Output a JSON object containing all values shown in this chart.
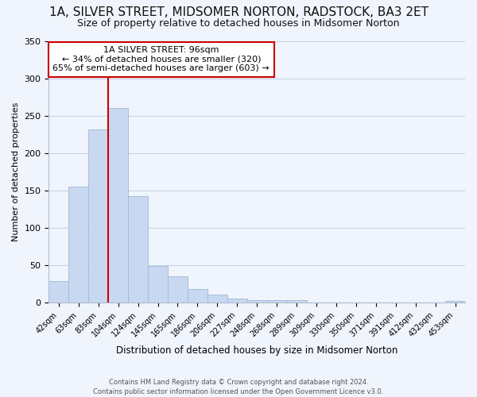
{
  "title_line1": "1A, SILVER STREET, MIDSOMER NORTON, RADSTOCK, BA3 2ET",
  "title_line2": "Size of property relative to detached houses in Midsomer Norton",
  "xlabel": "Distribution of detached houses by size in Midsomer Norton",
  "ylabel": "Number of detached properties",
  "bin_labels": [
    "42sqm",
    "63sqm",
    "83sqm",
    "104sqm",
    "124sqm",
    "145sqm",
    "165sqm",
    "186sqm",
    "206sqm",
    "227sqm",
    "248sqm",
    "268sqm",
    "289sqm",
    "309sqm",
    "330sqm",
    "350sqm",
    "371sqm",
    "391sqm",
    "412sqm",
    "432sqm",
    "453sqm"
  ],
  "bar_heights": [
    29,
    155,
    232,
    260,
    143,
    49,
    35,
    18,
    11,
    6,
    4,
    4,
    4,
    0,
    0,
    0,
    0,
    0,
    0,
    0,
    3
  ],
  "bar_color": "#c8d8f0",
  "bar_edge_color": "#a0b8d8",
  "vline_color": "#cc0000",
  "annotation_text": "1A SILVER STREET: 96sqm\n← 34% of detached houses are smaller (320)\n65% of semi-detached houses are larger (603) →",
  "annotation_box_color": "#ffffff",
  "annotation_box_edge": "#cc0000",
  "ylim": [
    0,
    350
  ],
  "yticks": [
    0,
    50,
    100,
    150,
    200,
    250,
    300,
    350
  ],
  "footer_text": "Contains HM Land Registry data © Crown copyright and database right 2024.\nContains public sector information licensed under the Open Government Licence v3.0.",
  "bg_color": "#f0f4fc",
  "grid_color": "#c8d4e8",
  "title1_fontsize": 11,
  "title2_fontsize": 9,
  "xlabel_fontsize": 8.5,
  "ylabel_fontsize": 8,
  "tick_fontsize": 7,
  "annotation_fontsize": 8,
  "footer_fontsize": 6.0
}
